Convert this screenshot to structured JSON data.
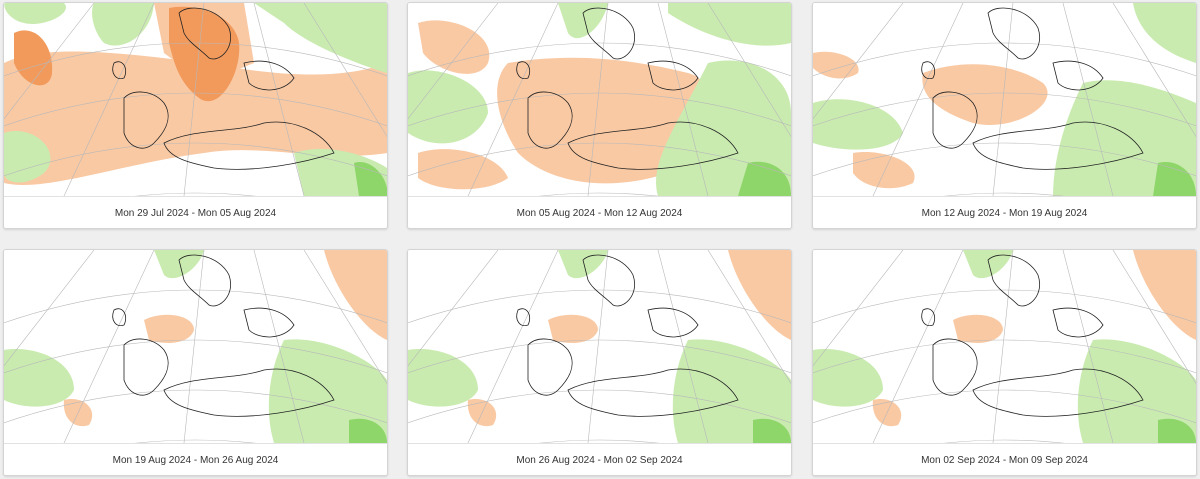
{
  "cards": [
    {
      "caption": "Mon 29 Jul 2024 - Mon 05 Aug 2024",
      "anomaly": "warm-strong"
    },
    {
      "caption": "Mon 05 Aug 2024 - Mon 12 Aug 2024",
      "anomaly": "warm-moderate"
    },
    {
      "caption": "Mon 12 Aug 2024 - Mon 19 Aug 2024",
      "anomaly": "mixed"
    },
    {
      "caption": "Mon 19 Aug 2024 - Mon 26 Aug 2024",
      "anomaly": "weak"
    },
    {
      "caption": "Mon 26 Aug 2024 - Mon 02 Sep 2024",
      "anomaly": "weak"
    },
    {
      "caption": "Mon 02 Sep 2024 - Mon 09 Sep 2024",
      "anomaly": "weak"
    }
  ],
  "colors": {
    "page_bg": "#efefef",
    "warm_light": "#f9c9a4",
    "warm_dark": "#f29a5c",
    "cool_light": "#c9ebb0",
    "cool_dark": "#8fd66a",
    "coast": "#222222",
    "grid": "#b8b8b8"
  }
}
